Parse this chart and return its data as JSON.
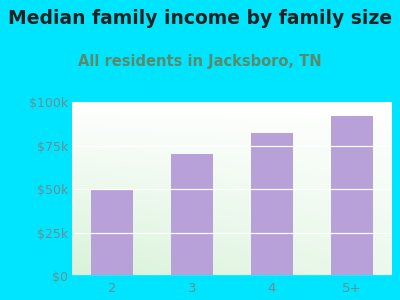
{
  "title": "Median family income by family size",
  "subtitle": "All residents in Jacksboro, TN",
  "categories": [
    "2",
    "3",
    "4",
    "5+"
  ],
  "values": [
    50000,
    70000,
    82000,
    92000
  ],
  "bar_color": "#b8a0d8",
  "title_fontsize": 13.5,
  "subtitle_fontsize": 10.5,
  "tick_label_color": "#6b8e8e",
  "subtitle_color": "#5a8a6a",
  "background_outer": "#00e5ff",
  "ylim": [
    0,
    100000
  ],
  "yticks": [
    0,
    25000,
    50000,
    75000,
    100000
  ],
  "ytick_labels": [
    "$0",
    "$25k",
    "$50k",
    "$75k",
    "$100k"
  ],
  "grid_color": "#cccccc",
  "title_color": "#222222"
}
